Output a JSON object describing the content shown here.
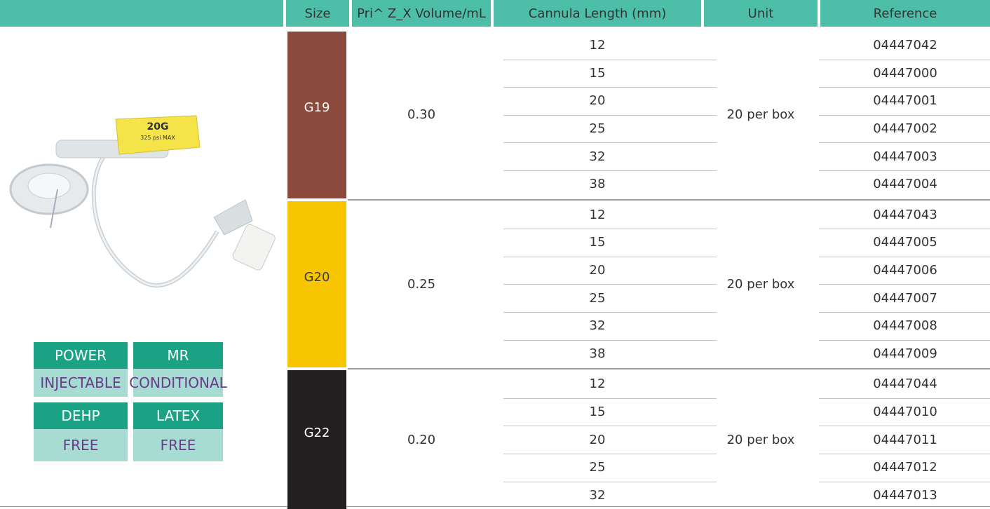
{
  "header": {
    "columns": [
      "Size",
      "Pri^ Z_X Volume/mL",
      "Cannula Length (mm)",
      "Unit",
      "Reference"
    ]
  },
  "device_label": {
    "gauge": "20G",
    "pressure": "325 psi MAX"
  },
  "badges": [
    {
      "top": "POWER",
      "bottom": "INJECTABLE"
    },
    {
      "top": "MR",
      "bottom": "CONDITIONAL"
    },
    {
      "top": "DEHP",
      "bottom": "FREE"
    },
    {
      "top": "LATEX",
      "bottom": "FREE"
    }
  ],
  "groups": [
    {
      "size": "G19",
      "color": "#8b4a3b",
      "text_color": "#ffffff",
      "volume": "0.30",
      "unit": "20 per box",
      "rows": [
        {
          "length": "12",
          "reference": "04447042"
        },
        {
          "length": "15",
          "reference": "04447000"
        },
        {
          "length": "20",
          "reference": "04447001"
        },
        {
          "length": "25",
          "reference": "04447002"
        },
        {
          "length": "32",
          "reference": "04447003"
        },
        {
          "length": "38",
          "reference": "04447004"
        }
      ]
    },
    {
      "size": "G20",
      "color": "#f8c600",
      "text_color": "#3a3a3a",
      "volume": "0.25",
      "unit": "20 per box",
      "rows": [
        {
          "length": "12",
          "reference": "04447043"
        },
        {
          "length": "15",
          "reference": "04447005"
        },
        {
          "length": "20",
          "reference": "04447006"
        },
        {
          "length": "25",
          "reference": "04447007"
        },
        {
          "length": "32",
          "reference": "04447008"
        },
        {
          "length": "38",
          "reference": "04447009"
        }
      ]
    },
    {
      "size": "G22",
      "color": "#231f20",
      "text_color": "#ffffff",
      "volume": "0.20",
      "unit": "20 per box",
      "rows": [
        {
          "length": "12",
          "reference": "04447044"
        },
        {
          "length": "15",
          "reference": "04447010"
        },
        {
          "length": "20",
          "reference": "04447011"
        },
        {
          "length": "25",
          "reference": "04447012"
        },
        {
          "length": "32",
          "reference": "04447013"
        }
      ]
    }
  ]
}
